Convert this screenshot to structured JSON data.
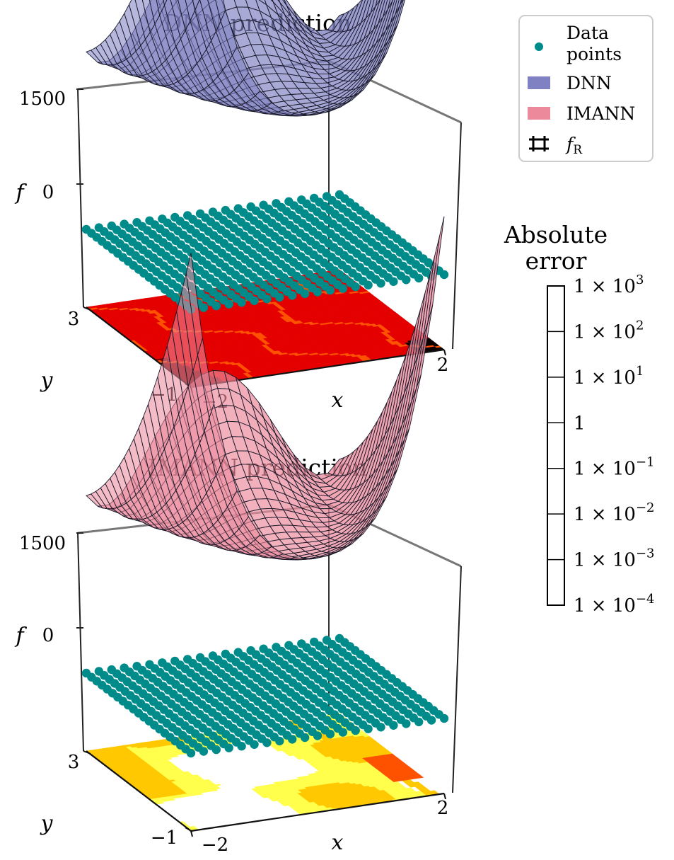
{
  "chart_data": [
    {
      "type": "surface3d",
      "title": "DNN prediction",
      "surface_series": "DNN",
      "surface_color": "#7f81c2",
      "xlabel": "x",
      "ylabel": "y",
      "zlabel": "f",
      "x_ticks": [
        "−2",
        "2"
      ],
      "y_ticks": [
        "−1",
        "3"
      ],
      "z_ticks": [
        "1500",
        "0"
      ],
      "xlim": [
        -2,
        2
      ],
      "ylim": [
        -1,
        3
      ],
      "error_map": "higher"
    },
    {
      "type": "surface3d",
      "title": "IMANN prediction",
      "surface_series": "IMANN",
      "surface_color": "#ec8a9c",
      "xlabel": "x",
      "ylabel": "y",
      "zlabel": "f",
      "x_ticks": [
        "−2",
        "2"
      ],
      "y_ticks": [
        "−1",
        "3"
      ],
      "z_ticks": [
        "1500",
        "0"
      ],
      "xlim": [
        -2,
        2
      ],
      "ylim": [
        -1,
        3
      ],
      "error_map": "lower"
    }
  ],
  "legend": {
    "placement": "top-right",
    "items": [
      {
        "label1": "Data",
        "label2": "points",
        "color": "#008b8b",
        "icon": "dot-icon"
      },
      {
        "label1": "DNN",
        "label2": "",
        "color": "#7f81c2",
        "icon": "patch-icon"
      },
      {
        "label1": "IMANN",
        "label2": "",
        "color": "#ec8a9c",
        "icon": "patch-icon"
      },
      {
        "label1": "f",
        "sub": "R",
        "color": "#000000",
        "icon": "grid-icon"
      }
    ]
  },
  "colorbar": {
    "title1": "Absolute",
    "title2": "error",
    "scale": "log",
    "levels": [
      {
        "mant": "1 × 10",
        "exp": "3",
        "color": "#0b0000"
      },
      {
        "mant": "1 × 10",
        "exp": "2",
        "color": "#790000"
      },
      {
        "mant": "1 × 10",
        "exp": "1",
        "color": "#e50000"
      },
      {
        "mant": "1",
        "exp": "",
        "color": "#fe5200"
      },
      {
        "mant": "1 × 10",
        "exp": "−1",
        "color": "#ffc800"
      },
      {
        "mant": "1 × 10",
        "exp": "−2",
        "color": "#ffff4c"
      },
      {
        "mant": "1 × 10",
        "exp": "−3",
        "color": "#ffffff"
      },
      {
        "mant": "1 × 10",
        "exp": "−4",
        "color": ""
      }
    ]
  }
}
